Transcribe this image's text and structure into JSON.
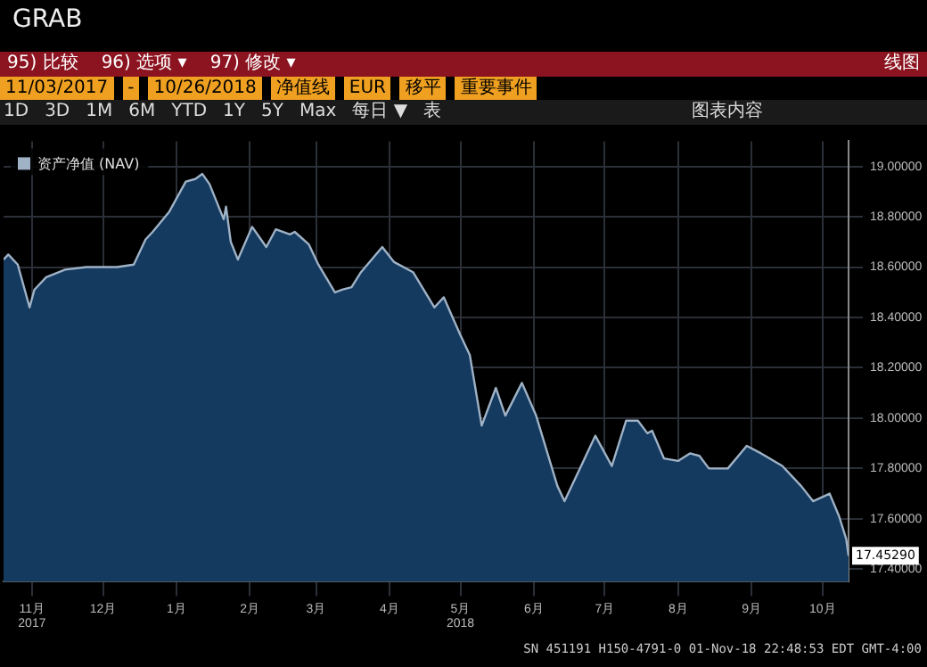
{
  "chart_data": {
    "type": "area",
    "title": "GRAB",
    "x": [
      "2017-11-03",
      "2017-11-05",
      "2017-11-09",
      "2017-11-14",
      "2017-11-16",
      "2017-11-21",
      "2017-11-29",
      "2017-12-08",
      "2017-12-21",
      "2017-12-28",
      "2018-01-02",
      "2018-01-05",
      "2018-01-12",
      "2018-01-19",
      "2018-01-23",
      "2018-01-26",
      "2018-01-29",
      "2018-02-01",
      "2018-02-04",
      "2018-02-05",
      "2018-02-07",
      "2018-02-10",
      "2018-02-16",
      "2018-02-22",
      "2018-02-26",
      "2018-03-04",
      "2018-03-06",
      "2018-03-12",
      "2018-03-16",
      "2018-03-23",
      "2018-03-26",
      "2018-03-30",
      "2018-04-03",
      "2018-04-12",
      "2018-04-17",
      "2018-04-25",
      "2018-05-04",
      "2018-05-08",
      "2018-05-15",
      "2018-05-19",
      "2018-05-24",
      "2018-05-30",
      "2018-06-03",
      "2018-06-10",
      "2018-06-16",
      "2018-06-25",
      "2018-06-28",
      "2018-07-06",
      "2018-07-11",
      "2018-07-18",
      "2018-07-24",
      "2018-07-29",
      "2018-08-02",
      "2018-08-04",
      "2018-08-09",
      "2018-08-15",
      "2018-08-20",
      "2018-08-24",
      "2018-08-28",
      "2018-09-05",
      "2018-09-13",
      "2018-09-19",
      "2018-09-28",
      "2018-10-06",
      "2018-10-11",
      "2018-10-18",
      "2018-10-22",
      "2018-10-25",
      "2018-10-26"
    ],
    "series": [
      {
        "name": "资产净值 (NAV)",
        "color": "#9fb2c6",
        "values": [
          18.63,
          18.65,
          18.61,
          18.44,
          18.51,
          18.56,
          18.59,
          18.6,
          18.6,
          18.61,
          18.71,
          18.74,
          18.82,
          18.94,
          18.95,
          18.97,
          18.93,
          18.86,
          18.79,
          18.84,
          18.7,
          18.63,
          18.76,
          18.68,
          18.75,
          18.73,
          18.74,
          18.69,
          18.61,
          18.5,
          18.51,
          18.52,
          18.58,
          18.68,
          18.62,
          18.58,
          18.44,
          18.48,
          18.33,
          18.25,
          17.97,
          18.12,
          18.01,
          18.14,
          18.01,
          17.73,
          17.67,
          17.83,
          17.93,
          17.81,
          17.99,
          17.99,
          17.94,
          17.95,
          17.84,
          17.83,
          17.86,
          17.85,
          17.8,
          17.8,
          17.89,
          17.86,
          17.81,
          17.73,
          17.67,
          17.7,
          17.61,
          17.52,
          17.4529
        ]
      }
    ],
    "xlim": [
      "2017-11-03",
      "2018-10-26"
    ],
    "xticks": [
      {
        "value": "2017-11-15",
        "label": "11月\n2017"
      },
      {
        "value": "2017-12-15",
        "label": "12月"
      },
      {
        "value": "2018-01-15",
        "label": "1月"
      },
      {
        "value": "2018-02-15",
        "label": "2月"
      },
      {
        "value": "2018-03-15",
        "label": "3月"
      },
      {
        "value": "2018-04-15",
        "label": "4月"
      },
      {
        "value": "2018-05-15",
        "label": "5月\n2018"
      },
      {
        "value": "2018-06-15",
        "label": "6月"
      },
      {
        "value": "2018-07-15",
        "label": "7月"
      },
      {
        "value": "2018-08-15",
        "label": "8月"
      },
      {
        "value": "2018-09-15",
        "label": "9月"
      },
      {
        "value": "2018-10-15",
        "label": "10月"
      }
    ],
    "ylim": [
      17.35,
      19.1
    ],
    "yticks": [
      {
        "value": 17.4,
        "label": "17.40000"
      },
      {
        "value": 17.6,
        "label": "17.60000"
      },
      {
        "value": 17.8,
        "label": "17.80000"
      },
      {
        "value": 18.0,
        "label": "18.00000"
      },
      {
        "value": 18.2,
        "label": "18.20000"
      },
      {
        "value": 18.4,
        "label": "18.40000"
      },
      {
        "value": 18.6,
        "label": "18.60000"
      },
      {
        "value": 18.8,
        "label": "18.80000"
      },
      {
        "value": 19.0,
        "label": "19.00000"
      }
    ],
    "grid": true,
    "legend": "top left",
    "annotations": [
      "95) 比较",
      "96) 选项 ▾",
      "97) 修改 ▾",
      "线图",
      "11/03/2017",
      "-",
      "10/26/2018",
      "净值线",
      "EUR",
      "移平",
      "重要事件",
      "1D",
      "3D",
      "1M",
      "6M",
      "YTD",
      "1Y",
      "5Y",
      "Max",
      "每日 ▼",
      "表",
      "图表内容",
      {
        "text": "17.45290",
        "x": "2018-10-26",
        "y": 17.4529
      },
      "SN 451191 H150-4791-0 01-Nov-18 22:48:53 EDT  GMT-4:00"
    ]
  }
}
